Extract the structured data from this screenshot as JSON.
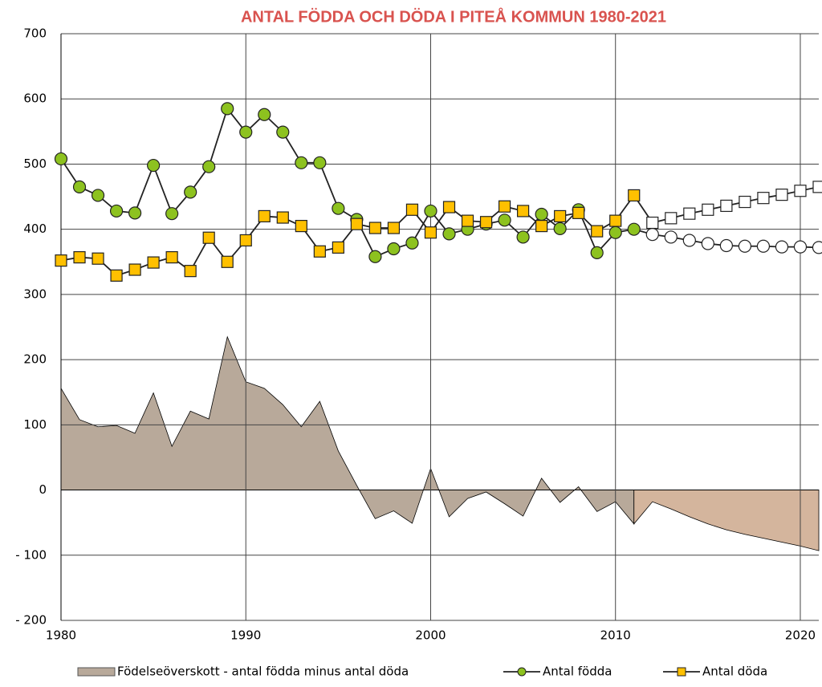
{
  "chart_data": {
    "type": "line",
    "title": "ANTAL FÖDDA OCH DÖDA I PITEÅ KOMMUN 1980-2021",
    "x": [
      1980,
      1981,
      1982,
      1983,
      1984,
      1985,
      1986,
      1987,
      1988,
      1989,
      1990,
      1991,
      1992,
      1993,
      1994,
      1995,
      1996,
      1997,
      1998,
      1999,
      2000,
      2001,
      2002,
      2003,
      2004,
      2005,
      2006,
      2007,
      2008,
      2009,
      2010,
      2011,
      2012,
      2013,
      2014,
      2015,
      2016,
      2017,
      2018,
      2019,
      2020,
      2021
    ],
    "forecast_from": 2012,
    "series": [
      {
        "name": "Födelseöverskott - antal födda minus antal döda",
        "kind": "area",
        "color": "#b8a99a",
        "forecast_color": "#d4b59d",
        "values": [
          156,
          108,
          97,
          99,
          87,
          149,
          67,
          121,
          109,
          235,
          166,
          156,
          131,
          97,
          136,
          60,
          7,
          -44,
          -32,
          -51,
          33,
          -41,
          -13,
          -3,
          -21,
          -40,
          18,
          -19,
          5,
          -33,
          -18,
          -52,
          -18,
          -29,
          -41,
          -52,
          -61,
          -68,
          -74,
          -80,
          -86,
          -93
        ]
      },
      {
        "name": "Antal födda",
        "kind": "line",
        "marker": "circle",
        "color": "#8dc21f",
        "values": [
          508,
          465,
          452,
          428,
          425,
          498,
          424,
          457,
          496,
          585,
          549,
          576,
          549,
          502,
          502,
          432,
          415,
          358,
          370,
          379,
          428,
          393,
          400,
          408,
          414,
          388,
          423,
          401,
          430,
          364,
          395,
          400,
          392,
          388,
          383,
          378,
          375,
          374,
          374,
          373,
          373,
          372
        ]
      },
      {
        "name": "Antal döda",
        "kind": "line",
        "marker": "square",
        "color": "#ffc000",
        "values": [
          352,
          357,
          355,
          329,
          338,
          349,
          357,
          336,
          387,
          350,
          383,
          420,
          418,
          405,
          366,
          372,
          408,
          402,
          402,
          430,
          395,
          434,
          413,
          411,
          435,
          428,
          405,
          420,
          425,
          397,
          413,
          452,
          410,
          417,
          424,
          430,
          436,
          442,
          448,
          453,
          459,
          465
        ]
      }
    ],
    "xlim": [
      1980,
      2021
    ],
    "xticks": [
      1980,
      1990,
      2000,
      2010,
      2020
    ],
    "ylim": [
      -200,
      700
    ],
    "yticks": [
      {
        "value": -200,
        "label": "- 200"
      },
      {
        "value": -100,
        "label": "- 100"
      },
      0,
      100,
      200,
      300,
      400,
      500,
      600,
      700
    ],
    "grid": true,
    "legend": "bottom"
  }
}
